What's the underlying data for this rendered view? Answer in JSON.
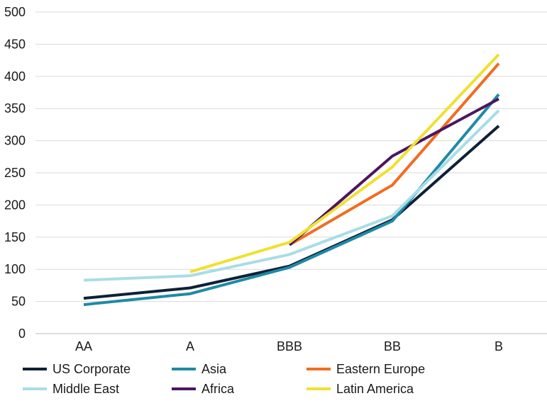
{
  "chart_data": {
    "type": "line",
    "categories": [
      "AA",
      "A",
      "BBB",
      "BB",
      "B"
    ],
    "ylim": [
      0,
      500
    ],
    "yticks": [
      0,
      50,
      100,
      150,
      200,
      250,
      300,
      350,
      400,
      450,
      500
    ],
    "grid": true,
    "legend_position": "bottom",
    "series": [
      {
        "name": "US Corporate",
        "color": "#0d2137",
        "values": [
          55,
          71,
          105,
          177,
          323
        ]
      },
      {
        "name": "Asia",
        "color": "#1f8aa5",
        "values": [
          45,
          62,
          103,
          175,
          372
        ]
      },
      {
        "name": "Eastern Europe",
        "color": "#f26c21",
        "values": [
          null,
          null,
          138,
          231,
          420
        ]
      },
      {
        "name": "Middle East",
        "color": "#a8dde6",
        "values": [
          83,
          90,
          123,
          183,
          347
        ]
      },
      {
        "name": "Africa",
        "color": "#4b1660",
        "values": [
          null,
          null,
          138,
          276,
          365
        ]
      },
      {
        "name": "Latin America",
        "color": "#f0e030",
        "values": [
          null,
          96,
          142,
          259,
          434
        ]
      }
    ]
  }
}
